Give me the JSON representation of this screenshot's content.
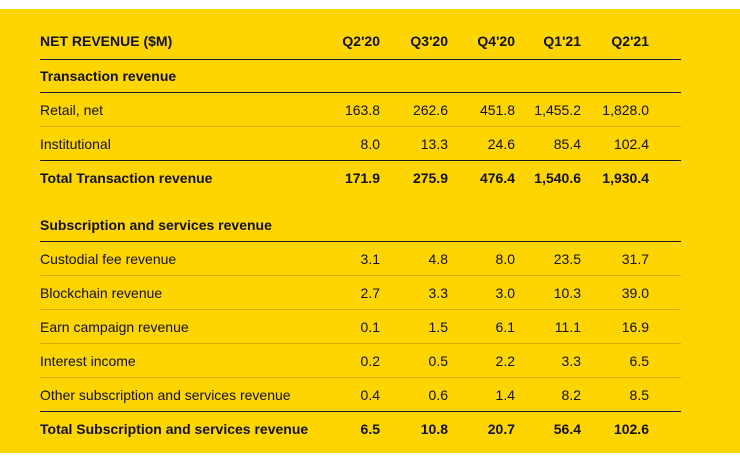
{
  "header": {
    "title": "NET REVENUE ($M)",
    "columns": [
      "Q2'20",
      "Q3'20",
      "Q4'20",
      "Q1'21",
      "Q2'21"
    ]
  },
  "transaction": {
    "heading": "Transaction revenue",
    "rows": [
      {
        "label": "Retail, net",
        "values": [
          "163.8",
          "262.6",
          "451.8",
          "1,455.2",
          "1,828.0"
        ]
      },
      {
        "label": "Institutional",
        "values": [
          "8.0",
          "13.3",
          "24.6",
          "85.4",
          "102.4"
        ]
      }
    ],
    "total": {
      "label": "Total Transaction revenue",
      "values": [
        "171.9",
        "275.9",
        "476.4",
        "1,540.6",
        "1,930.4"
      ]
    }
  },
  "subscription": {
    "heading": "Subscription and services revenue",
    "rows": [
      {
        "label": "Custodial fee revenue",
        "values": [
          "3.1",
          "4.8",
          "8.0",
          "23.5",
          "31.7"
        ]
      },
      {
        "label": "Blockchain revenue",
        "values": [
          "2.7",
          "3.3",
          "3.0",
          "10.3",
          "39.0"
        ]
      },
      {
        "label": "Earn campaign revenue",
        "values": [
          "0.1",
          "1.5",
          "6.1",
          "11.1",
          "16.9"
        ]
      },
      {
        "label": "Interest income",
        "values": [
          "0.2",
          "0.5",
          "2.2",
          "3.3",
          "6.5"
        ]
      },
      {
        "label": "Other subscription and services revenue",
        "values": [
          "0.4",
          "0.6",
          "1.4",
          "8.2",
          "8.5"
        ]
      }
    ],
    "total": {
      "label": "Total Subscription and services revenue",
      "values": [
        "6.5",
        "10.8",
        "20.7",
        "56.4",
        "102.6"
      ]
    }
  },
  "colors": {
    "background": "#FFD500",
    "text": "#111111",
    "rule": "#1a1a1a"
  }
}
